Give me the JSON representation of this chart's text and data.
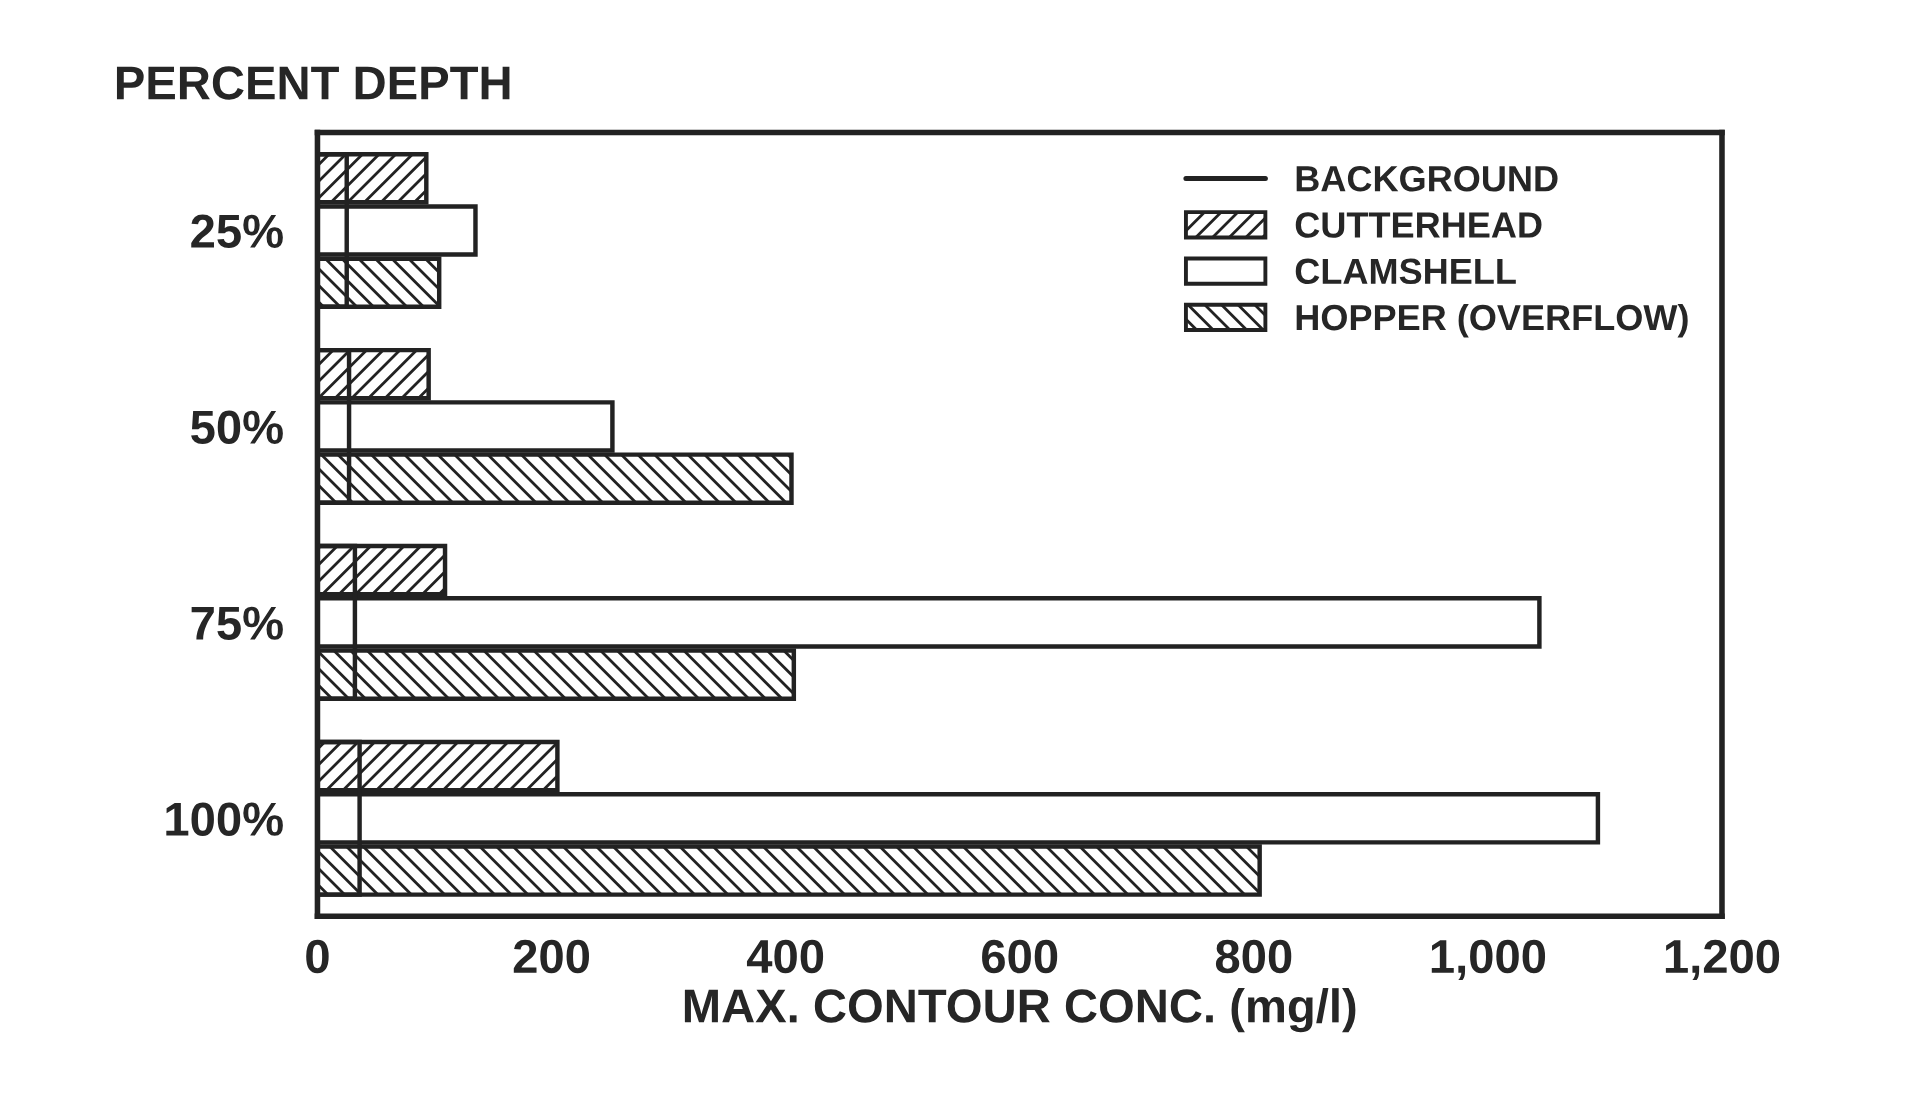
{
  "chart_data": {
    "type": "bar",
    "orientation": "horizontal",
    "ylabel": "PERCENT DEPTH",
    "xlabel": "MAX. CONTOUR CONC. (mg/l)",
    "categories": [
      "25%",
      "50%",
      "75%",
      "100%"
    ],
    "series": [
      {
        "name": "BACKGROUND",
        "color": "#222222",
        "values": [
          25,
          27,
          32,
          36
        ]
      },
      {
        "name": "CUTTERHEAD",
        "color": "#222222",
        "values": [
          93,
          95,
          109,
          205
        ]
      },
      {
        "name": "CLAMSHELL",
        "color": "#ffffff",
        "values": [
          135,
          252,
          1044,
          1094
        ]
      },
      {
        "name": "HOPPER (OVERFLOW)",
        "color": "#222222",
        "values": [
          104,
          405,
          407,
          805
        ]
      }
    ],
    "xlim": [
      0,
      1200
    ],
    "xticks": [
      0,
      200,
      400,
      600,
      800,
      {
        "value": 1000,
        "label": "1,000"
      },
      {
        "value": 1200,
        "label": "1,200"
      }
    ],
    "legend": "top right"
  }
}
